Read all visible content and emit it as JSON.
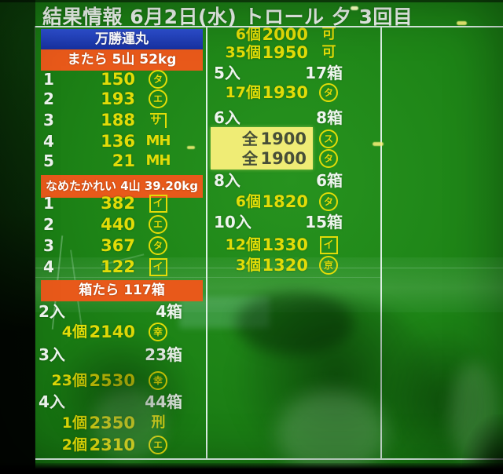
{
  "screen": {
    "title": "結果情報  6月2日(水)  トロール  夕  3回目"
  },
  "left": {
    "ship": "万勝運丸",
    "sections": [
      {
        "band": "またら 5山 52kg",
        "rows": [
          {
            "no": "1",
            "price": "150",
            "mark": {
              "kind": "circle",
              "char": "タ"
            }
          },
          {
            "no": "2",
            "price": "193",
            "mark": {
              "kind": "circle",
              "char": "エ"
            }
          },
          {
            "no": "3",
            "price": "188",
            "mark": {
              "kind": "corner",
              "char": "サ"
            }
          },
          {
            "no": "4",
            "price": "136",
            "mark": {
              "kind": "plain",
              "char": "MH"
            }
          },
          {
            "no": "5",
            "price": "21",
            "mark": {
              "kind": "plain",
              "char": "MH"
            }
          }
        ]
      },
      {
        "band": "なめたかれい 4山 39.20kg",
        "rows": [
          {
            "no": "1",
            "price": "382",
            "mark": {
              "kind": "box",
              "char": "イ"
            }
          },
          {
            "no": "2",
            "price": "440",
            "mark": {
              "kind": "circle",
              "char": "エ"
            }
          },
          {
            "no": "3",
            "price": "367",
            "mark": {
              "kind": "circle",
              "char": "タ"
            }
          },
          {
            "no": "4",
            "price": "122",
            "mark": {
              "kind": "box",
              "char": "イ"
            }
          }
        ]
      },
      {
        "band": "箱たら 117箱",
        "groups": [
          {
            "size": "2入",
            "boxes": "4箱",
            "details": [
              {
                "qty": "4個",
                "price": "2140",
                "mark": {
                  "kind": "circle",
                  "char": "幸"
                }
              }
            ]
          },
          {
            "size": "3入",
            "boxes": "23箱",
            "details": [
              {
                "qty": "23個",
                "price": "2530",
                "mark": {
                  "kind": "circle",
                  "char": "幸"
                }
              }
            ]
          },
          {
            "size": "4入",
            "boxes": "44箱",
            "details": [
              {
                "qty": "1個",
                "price": "2350",
                "mark": {
                  "kind": "plain",
                  "char": "刑"
                }
              },
              {
                "qty": "2個",
                "price": "2310",
                "mark": {
                  "kind": "circle",
                  "char": "エ"
                }
              }
            ]
          }
        ]
      }
    ]
  },
  "right": {
    "groups": [
      {
        "size": "",
        "boxes": "",
        "details": [
          {
            "qty": "6個",
            "price": "2000",
            "mark": {
              "kind": "plain",
              "char": "可"
            }
          },
          {
            "qty": "35個",
            "price": "1950",
            "mark": {
              "kind": "plain",
              "char": "可"
            }
          }
        ]
      },
      {
        "size": "5入",
        "boxes": "17箱",
        "details": [
          {
            "qty": "17個",
            "price": "1930",
            "mark": {
              "kind": "circle",
              "char": "タ"
            }
          }
        ]
      },
      {
        "size": "6入",
        "boxes": "8箱",
        "highlight": [
          {
            "label": "全",
            "price": "1900",
            "mark": {
              "kind": "circle",
              "char": "ス"
            }
          },
          {
            "label": "全",
            "price": "1900",
            "mark": {
              "kind": "circle",
              "char": "タ"
            }
          }
        ]
      },
      {
        "size": "8入",
        "boxes": "6箱",
        "details": [
          {
            "qty": "6個",
            "price": "1820",
            "mark": {
              "kind": "circle",
              "char": "タ"
            }
          }
        ]
      },
      {
        "size": "10入",
        "boxes": "15箱",
        "details": [
          {
            "qty": "12個",
            "price": "1330",
            "mark": {
              "kind": "box",
              "char": "イ"
            }
          },
          {
            "qty": "3個",
            "price": "1320",
            "mark": {
              "kind": "circle",
              "char": "京"
            }
          }
        ]
      }
    ]
  },
  "colors": {
    "board_green": "#1e8617",
    "text_yellow": "#e2dc08",
    "text_white": "#eef5ee",
    "band_blue": "#1f3db2",
    "band_orange": "#e8591a",
    "highlight_yellow": "#efec75"
  }
}
